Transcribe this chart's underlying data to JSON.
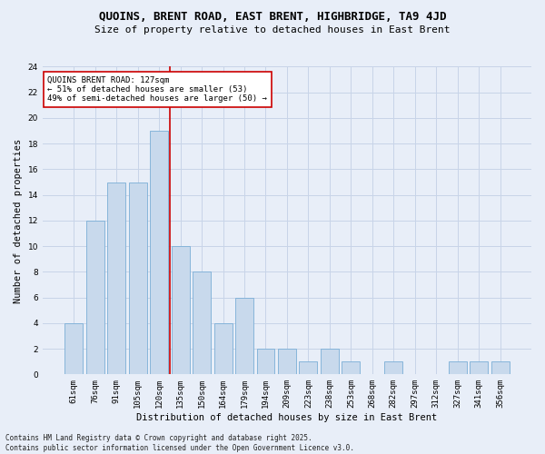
{
  "title": "QUOINS, BRENT ROAD, EAST BRENT, HIGHBRIDGE, TA9 4JD",
  "subtitle": "Size of property relative to detached houses in East Brent",
  "xlabel": "Distribution of detached houses by size in East Brent",
  "ylabel": "Number of detached properties",
  "categories": [
    "61sqm",
    "76sqm",
    "91sqm",
    "105sqm",
    "120sqm",
    "135sqm",
    "150sqm",
    "164sqm",
    "179sqm",
    "194sqm",
    "209sqm",
    "223sqm",
    "238sqm",
    "253sqm",
    "268sqm",
    "282sqm",
    "297sqm",
    "312sqm",
    "327sqm",
    "341sqm",
    "356sqm"
  ],
  "values": [
    4,
    12,
    15,
    15,
    19,
    10,
    8,
    4,
    6,
    2,
    2,
    1,
    2,
    1,
    0,
    1,
    0,
    0,
    1,
    1,
    1
  ],
  "bar_color": "#c8d9ec",
  "bar_edge_color": "#7aaed6",
  "vline_x": 4.5,
  "vline_color": "#cc0000",
  "annotation_text": "QUOINS BRENT ROAD: 127sqm\n← 51% of detached houses are smaller (53)\n49% of semi-detached houses are larger (50) →",
  "annotation_box_color": "#ffffff",
  "annotation_box_edge": "#cc0000",
  "ylim": [
    0,
    24
  ],
  "yticks": [
    0,
    2,
    4,
    6,
    8,
    10,
    12,
    14,
    16,
    18,
    20,
    22,
    24
  ],
  "grid_color": "#c8d4e8",
  "background_color": "#e8eef8",
  "footer": "Contains HM Land Registry data © Crown copyright and database right 2025.\nContains public sector information licensed under the Open Government Licence v3.0.",
  "title_fontsize": 9,
  "subtitle_fontsize": 8,
  "axis_label_fontsize": 7.5,
  "tick_fontsize": 6.5,
  "annotation_fontsize": 6.5,
  "footer_fontsize": 5.5
}
